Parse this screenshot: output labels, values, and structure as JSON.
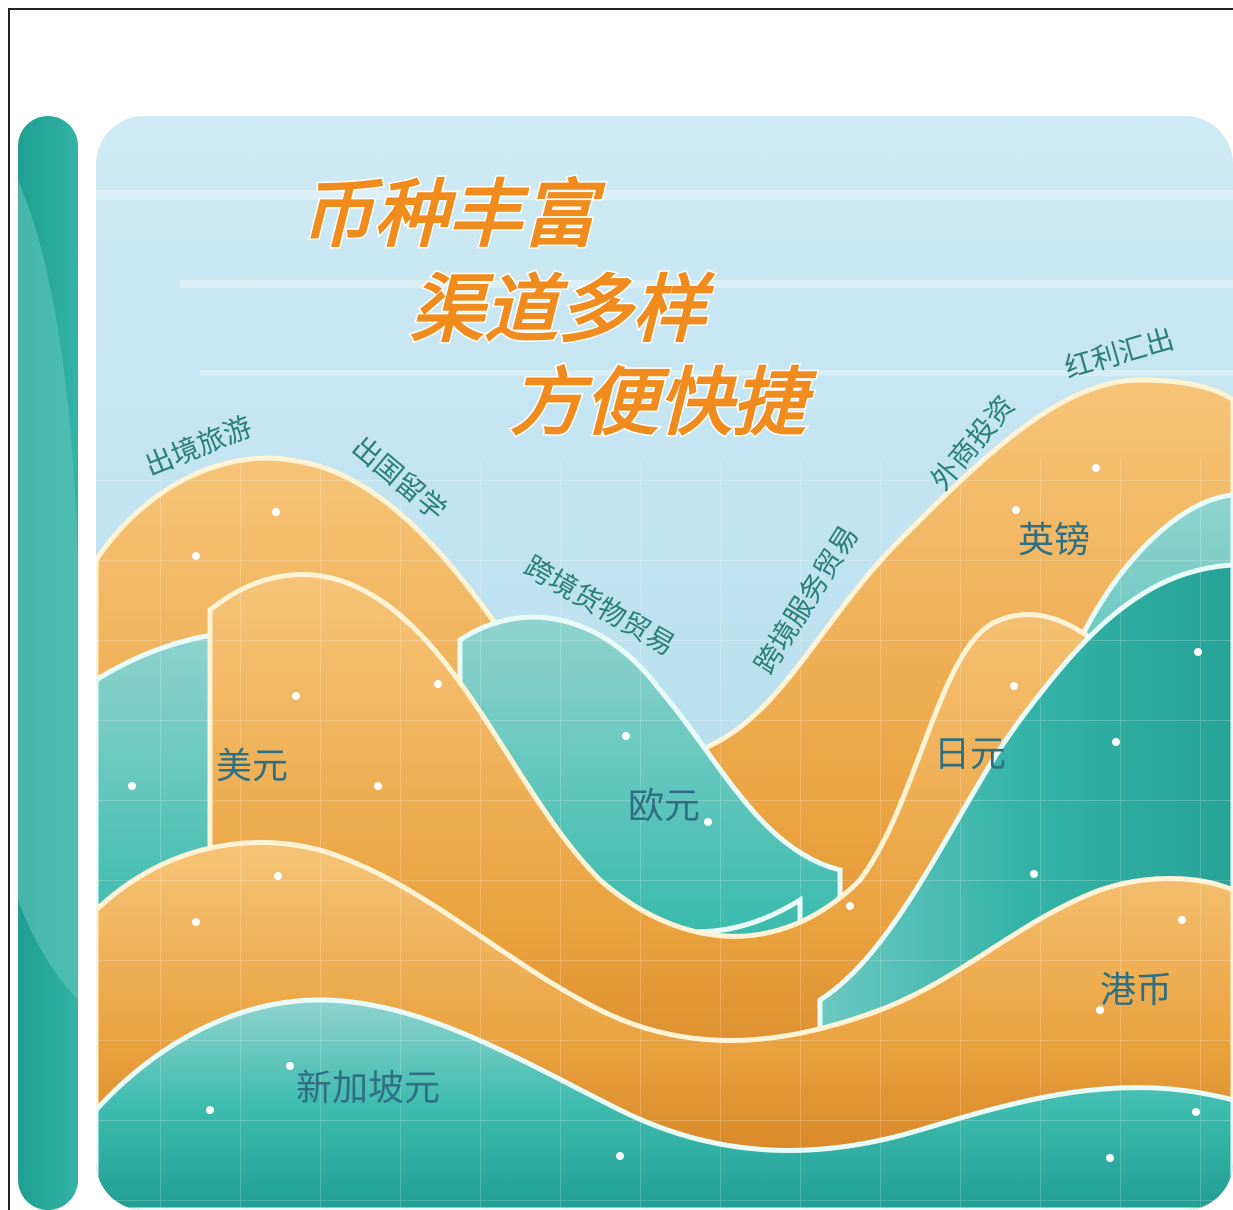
{
  "headline": {
    "line1": "币种丰富",
    "line2": "渠道多样",
    "line3": "方便快捷"
  },
  "channels": {
    "c1": "出境旅游",
    "c2": "出国留学",
    "c3": "跨境货物贸易",
    "c4": "跨境服务贸易",
    "c5": "外商投资",
    "c6": "红利汇出"
  },
  "currencies": {
    "usd": "美元",
    "eur": "欧元",
    "jpy": "日元",
    "gbp": "英镑",
    "hkd": "港币",
    "sgd": "新加坡元"
  },
  "colors": {
    "sky": "#bfe3ef",
    "teal": "#2db3a6",
    "orange": "#e8922a",
    "title_orange": "#f08c1e",
    "label_teal": "#2a7f78"
  }
}
